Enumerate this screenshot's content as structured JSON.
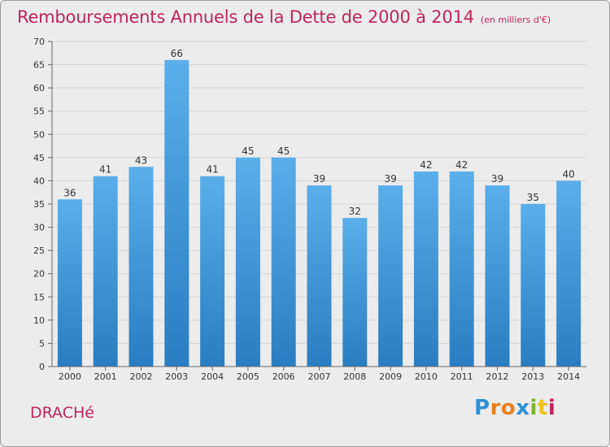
{
  "header": {
    "title": "Remboursements Annuels de la Dette de 2000 à 2014",
    "unit": "(en milliers d'€)"
  },
  "footer": {
    "commune": "DRACHé",
    "logo": {
      "letters": [
        "P",
        "r",
        "o",
        "x",
        "i",
        "t",
        "i"
      ],
      "colors": [
        "#2e8fd6",
        "#e8801e",
        "#e8801e",
        "#2e8fd6",
        "#7bb42b",
        "#e8c21e",
        "#c0245d"
      ]
    }
  },
  "chart_data": {
    "type": "bar",
    "title": "Remboursements Annuels de la Dette de 2000 à 2014",
    "categories": [
      "2000",
      "2001",
      "2002",
      "2003",
      "2004",
      "2005",
      "2006",
      "2007",
      "2008",
      "2009",
      "2010",
      "2011",
      "2012",
      "2013",
      "2014"
    ],
    "values": [
      36,
      41,
      43,
      66,
      41,
      45,
      45,
      39,
      32,
      39,
      42,
      42,
      39,
      35,
      40
    ],
    "ylim": [
      0,
      70
    ],
    "yticks": [
      0,
      5,
      10,
      15,
      20,
      25,
      30,
      35,
      40,
      45,
      50,
      55,
      60,
      65,
      70
    ],
    "grid": true,
    "bar_color_top": "#5aaeea",
    "bar_color_bottom": "#2a7dc0"
  }
}
